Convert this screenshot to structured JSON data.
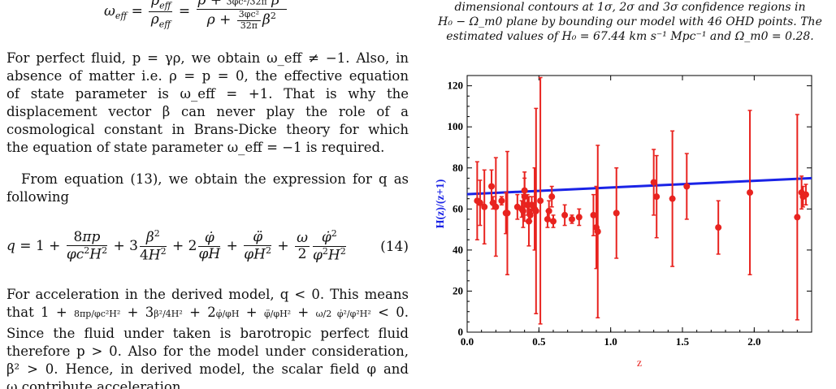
{
  "paper": {
    "eq_top": "ω_eff = ρ_eff / ρ_eff = (ρ + 3φc²/32π β²) / (ρ + 3φc²/32π β²)",
    "para1": [
      "For perfect fluid, p = γρ, we obtain ω_eff ≠ −1. Also, in",
      "absence of matter i.e. ρ = p = 0, the effective equation",
      "of state parameter is ω_eff = +1. That is why the",
      "displacement vector β can never play the role of a",
      "cosmological constant in Brans-Dicke theory for which",
      "the equation of state parameter ω_eff = −1 is required."
    ],
    "para2": [
      "From equation (13), we obtain the expression for q as",
      "following"
    ],
    "eq14_number": "(14)",
    "para3": [
      "For acceleration in the derived model, q < 0. This means",
      "that",
      "Since the fluid under taken is barotropic perfect fluid",
      "therefore p > 0. Also for the model under consideration,",
      "β² > 0. Hence, in derived model, the scalar field φ and",
      "ω contribute acceleration."
    ],
    "caption": [
      "dimensional contours at 1σ, 2σ and 3σ confidence regions in",
      "H₀ − Ω_m0 plane by bounding our model with 46 OHD points. The",
      "estimated values of H₀ = 67.44 km s⁻¹ Mpc⁻¹ and Ω_m0 = 0.28."
    ]
  },
  "chart_data": {
    "type": "scatter",
    "xlabel": "z",
    "ylabel": "H(z)/(z+1)",
    "xlim": [
      0,
      2.4
    ],
    "ylim": [
      0,
      125
    ],
    "xticks": [
      "0.0",
      "0.5",
      "1.0",
      "1.5",
      "2.0"
    ],
    "yticks": [
      "0",
      "20",
      "40",
      "60",
      "80",
      "100",
      "120"
    ],
    "colors": {
      "points": "#e8231f",
      "model": "#1a23e6"
    },
    "model_line": {
      "x": [
        0.0,
        2.4
      ],
      "y": [
        67.2,
        75.0
      ]
    },
    "points": [
      {
        "z": 0.07,
        "y": 64,
        "err": 19
      },
      {
        "z": 0.09,
        "y": 63,
        "err": 11
      },
      {
        "z": 0.12,
        "y": 61,
        "err": 18
      },
      {
        "z": 0.17,
        "y": 71,
        "err": 8
      },
      {
        "z": 0.18,
        "y": 63,
        "err": 3
      },
      {
        "z": 0.2,
        "y": 61,
        "err": 24
      },
      {
        "z": 0.24,
        "y": 64,
        "err": 2
      },
      {
        "z": 0.27,
        "y": 58,
        "err": 10
      },
      {
        "z": 0.28,
        "y": 58,
        "err": 30
      },
      {
        "z": 0.35,
        "y": 61,
        "err": 6
      },
      {
        "z": 0.38,
        "y": 60,
        "err": 4
      },
      {
        "z": 0.39,
        "y": 59,
        "err": 8
      },
      {
        "z": 0.4,
        "y": 66,
        "err": 12
      },
      {
        "z": 0.4,
        "y": 69,
        "err": 6
      },
      {
        "z": 0.42,
        "y": 62,
        "err": 5
      },
      {
        "z": 0.43,
        "y": 54,
        "err": 12
      },
      {
        "z": 0.44,
        "y": 57,
        "err": 3
      },
      {
        "z": 0.45,
        "y": 62,
        "err": 4
      },
      {
        "z": 0.47,
        "y": 60,
        "err": 20
      },
      {
        "z": 0.48,
        "y": 59,
        "err": 50
      },
      {
        "z": 0.51,
        "y": 64,
        "err": 60
      },
      {
        "z": 0.56,
        "y": 55,
        "err": 4
      },
      {
        "z": 0.57,
        "y": 59,
        "err": 5
      },
      {
        "z": 0.59,
        "y": 66,
        "err": 5
      },
      {
        "z": 0.6,
        "y": 54,
        "err": 3
      },
      {
        "z": 0.68,
        "y": 57,
        "err": 5
      },
      {
        "z": 0.73,
        "y": 55,
        "err": 2
      },
      {
        "z": 0.78,
        "y": 56,
        "err": 4
      },
      {
        "z": 0.88,
        "y": 57,
        "err": 10
      },
      {
        "z": 0.9,
        "y": 51,
        "err": 20
      },
      {
        "z": 0.91,
        "y": 49,
        "err": 42
      },
      {
        "z": 1.04,
        "y": 58,
        "err": 22
      },
      {
        "z": 1.3,
        "y": 73,
        "err": 16
      },
      {
        "z": 1.32,
        "y": 66,
        "err": 20
      },
      {
        "z": 1.43,
        "y": 65,
        "err": 33
      },
      {
        "z": 1.53,
        "y": 71,
        "err": 16
      },
      {
        "z": 1.75,
        "y": 51,
        "err": 13
      },
      {
        "z": 1.97,
        "y": 68,
        "err": 40
      },
      {
        "z": 2.3,
        "y": 56,
        "err": 50
      },
      {
        "z": 2.33,
        "y": 68,
        "err": 8
      },
      {
        "z": 2.34,
        "y": 66,
        "err": 5
      },
      {
        "z": 2.36,
        "y": 67,
        "err": 5
      }
    ]
  }
}
